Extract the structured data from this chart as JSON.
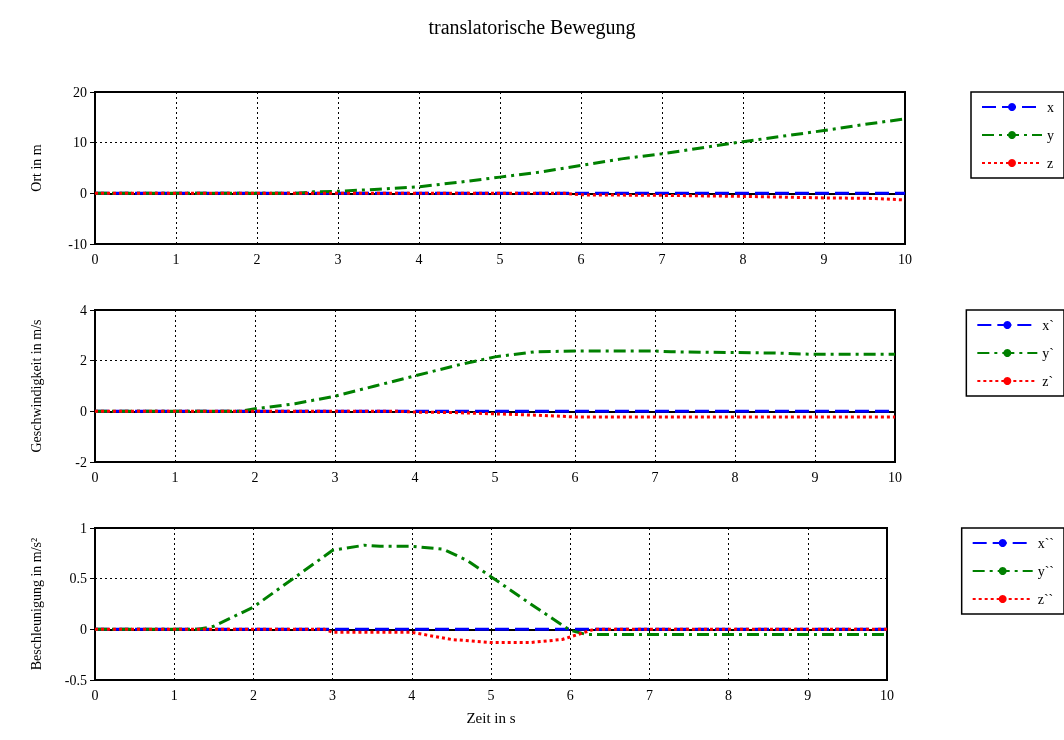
{
  "chart_data": [
    {
      "type": "line",
      "title": "translatorische Bewegung",
      "ylabel": "Ort in m",
      "xlim": [
        0,
        10
      ],
      "xticks": [
        0,
        1,
        2,
        3,
        4,
        5,
        6,
        7,
        8,
        9,
        10
      ],
      "ylim": [
        -10,
        20
      ],
      "yticks": [
        -10,
        0,
        10,
        20
      ],
      "grid": true,
      "legend": "right",
      "marker": "none",
      "series": [
        {
          "name": "x",
          "color": "#0000ff",
          "line_style": "dashed",
          "x": [
            0,
            10
          ],
          "values": [
            0,
            0
          ]
        },
        {
          "name": "y",
          "color": "#008000",
          "line_style": "dashdot",
          "x": [
            0,
            2.5,
            2.7,
            3,
            3.5,
            4,
            4.5,
            5,
            5.5,
            6,
            6.5,
            7,
            7.5,
            8,
            8.5,
            9,
            9.5,
            10
          ],
          "values": [
            0,
            0,
            0.3,
            0.4,
            0.8,
            1.3,
            2.2,
            3.2,
            4.2,
            5.5,
            6.8,
            7.8,
            9,
            10.2,
            11.3,
            12.4,
            13.6,
            14.7
          ]
        },
        {
          "name": "z",
          "color": "#ff0000",
          "line_style": "dotted",
          "x": [
            0,
            5.8,
            6,
            7,
            8,
            9,
            9.6,
            10
          ],
          "values": [
            0,
            0,
            -0.3,
            -0.4,
            -0.6,
            -0.9,
            -1,
            -1.3
          ]
        }
      ]
    },
    {
      "type": "line",
      "ylabel": "Geschwindigkeit in m/s",
      "xlim": [
        0,
        10
      ],
      "xticks": [
        0,
        1,
        2,
        3,
        4,
        5,
        6,
        7,
        8,
        9,
        10
      ],
      "ylim": [
        -2,
        4
      ],
      "yticks": [
        -2,
        0,
        2,
        4
      ],
      "grid": true,
      "legend": "right",
      "marker": "none",
      "series": [
        {
          "name": "x`",
          "color": "#0000ff",
          "line_style": "dashed",
          "x": [
            0,
            10
          ],
          "values": [
            0,
            0
          ]
        },
        {
          "name": "y`",
          "color": "#008000",
          "line_style": "dashdot",
          "x": [
            0,
            1.8,
            2,
            2.5,
            3,
            3.5,
            4,
            4.5,
            5,
            5.5,
            6,
            7,
            7.2,
            8,
            8.5,
            9,
            10
          ],
          "values": [
            0,
            0,
            0.1,
            0.3,
            0.6,
            1.0,
            1.4,
            1.8,
            2.15,
            2.35,
            2.38,
            2.38,
            2.35,
            2.32,
            2.3,
            2.25,
            2.25
          ]
        },
        {
          "name": "z`",
          "color": "#ff0000",
          "line_style": "dotted",
          "x": [
            0,
            3.8,
            4,
            4.5,
            5,
            5.5,
            6,
            7,
            10
          ],
          "values": [
            0,
            0,
            -0.03,
            -0.05,
            -0.1,
            -0.15,
            -0.22,
            -0.22,
            -0.22
          ]
        }
      ]
    },
    {
      "type": "line",
      "ylabel": "Beschleunigung in m/s²",
      "xlabel": "Zeit in s",
      "xlim": [
        0,
        10
      ],
      "xticks": [
        0,
        1,
        2,
        3,
        4,
        5,
        6,
        7,
        8,
        9,
        10
      ],
      "ylim": [
        -0.5,
        1
      ],
      "yticks": [
        -0.5,
        0,
        0.5,
        1
      ],
      "grid": true,
      "legend": "right",
      "marker": "none",
      "series": [
        {
          "name": "x``",
          "color": "#0000ff",
          "line_style": "dashed",
          "x": [
            0,
            10
          ],
          "values": [
            0,
            0
          ]
        },
        {
          "name": "y``",
          "color": "#008000",
          "line_style": "dashdot",
          "x": [
            0,
            1.3,
            1.5,
            2,
            2.5,
            3,
            3.4,
            3.6,
            4,
            4.4,
            4.7,
            5,
            5.5,
            6,
            6.2,
            10
          ],
          "values": [
            0,
            0,
            0.03,
            0.22,
            0.5,
            0.78,
            0.83,
            0.82,
            0.82,
            0.79,
            0.68,
            0.52,
            0.25,
            -0.01,
            -0.05,
            -0.05
          ]
        },
        {
          "name": "z``",
          "color": "#ff0000",
          "line_style": "dotted",
          "x": [
            0,
            2.9,
            3,
            4,
            4.5,
            5,
            5.5,
            5.9,
            6.1,
            6.3,
            10
          ],
          "values": [
            0,
            0,
            -0.03,
            -0.03,
            -0.1,
            -0.13,
            -0.13,
            -0.1,
            -0.05,
            0,
            0
          ]
        }
      ]
    }
  ]
}
